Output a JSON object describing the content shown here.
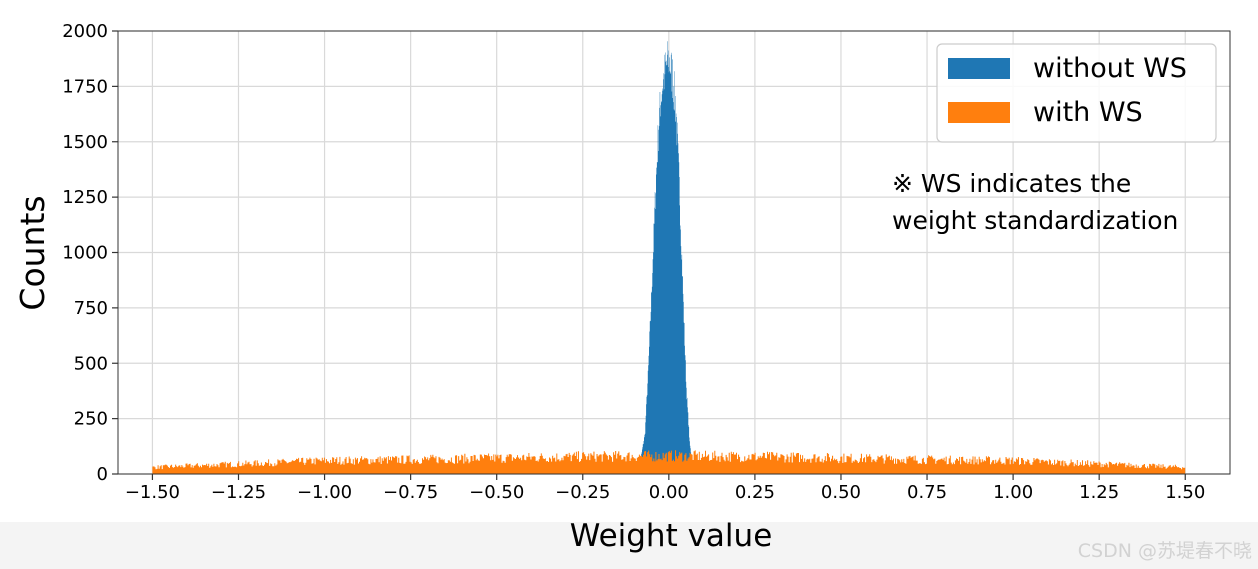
{
  "chart_data": {
    "type": "histogram",
    "xlabel": "Weight value",
    "ylabel": "Counts",
    "xlim": [
      -1.6,
      1.63
    ],
    "ylim": [
      0,
      2000
    ],
    "xticks": [
      "−1.50",
      "−1.25",
      "−1.00",
      "−0.75",
      "−0.50",
      "−0.25",
      "0.00",
      "0.25",
      "0.50",
      "0.75",
      "1.00",
      "1.25",
      "1.50"
    ],
    "xtick_values": [
      -1.5,
      -1.25,
      -1.0,
      -0.75,
      -0.5,
      -0.25,
      0.0,
      0.25,
      0.5,
      0.75,
      1.0,
      1.25,
      1.5
    ],
    "yticks": [
      "0",
      "250",
      "500",
      "750",
      "1000",
      "1250",
      "1500",
      "1750",
      "2000"
    ],
    "ytick_values": [
      0,
      250,
      500,
      750,
      1000,
      1250,
      1500,
      1750,
      2000
    ],
    "grid": true,
    "legend_position": "top-right",
    "series": [
      {
        "name": "without WS",
        "color": "#1f77b4",
        "x": [
          -0.09,
          -0.08,
          -0.07,
          -0.06,
          -0.05,
          -0.04,
          -0.03,
          -0.02,
          -0.01,
          0.0,
          0.01,
          0.02,
          0.03,
          0.04,
          0.05,
          0.06,
          0.07
        ],
        "counts": [
          30,
          90,
          180,
          480,
          850,
          1250,
          1580,
          1750,
          1830,
          1870,
          1800,
          1650,
          1300,
          850,
          400,
          140,
          30
        ]
      },
      {
        "name": "with WS",
        "color": "#ff7f0e",
        "x": [
          -1.5,
          -1.25,
          -1.0,
          -0.75,
          -0.5,
          -0.25,
          0.0,
          0.25,
          0.5,
          0.75,
          1.0,
          1.25,
          1.5
        ],
        "counts": [
          30,
          45,
          60,
          65,
          72,
          78,
          82,
          78,
          72,
          65,
          60,
          45,
          30
        ]
      }
    ],
    "annotation": [
      "※ WS indicates the",
      "weight standardization"
    ]
  },
  "watermark": "CSDN @苏堤春不晓"
}
